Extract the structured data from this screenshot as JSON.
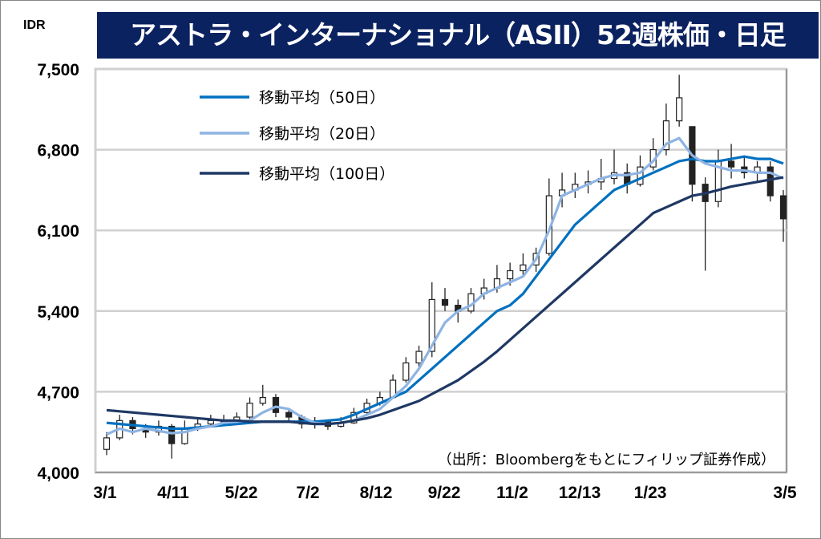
{
  "title": "アストラ・インターナショナル（ASII）52週株価・日足",
  "chart_data": {
    "type": "candlestick",
    "title": "アストラ・インターナショナル（ASII）52週株価・日足",
    "ylabel": "IDR",
    "ylim": [
      4000,
      7500
    ],
    "yticks": [
      "4,000",
      "4,700",
      "5,400",
      "6,100",
      "6,800",
      "7,500"
    ],
    "ytick_values": [
      4000,
      4700,
      5400,
      6100,
      6800,
      7500
    ],
    "xticks": [
      "3/1",
      "4/11",
      "5/22",
      "7/2",
      "8/12",
      "9/22",
      "11/2",
      "12/13",
      "1/23",
      "3/5"
    ],
    "grid": "horizontal",
    "legend_position": "top-left",
    "source": "（出所：Bloombergをもとにフィリップ証券作成）",
    "ohlc": [
      [
        4200,
        4350,
        4150,
        4300
      ],
      [
        4300,
        4500,
        4280,
        4450
      ],
      [
        4450,
        4480,
        4330,
        4380
      ],
      [
        4380,
        4420,
        4300,
        4350
      ],
      [
        4350,
        4450,
        4320,
        4400
      ],
      [
        4400,
        4420,
        4120,
        4250
      ],
      [
        4250,
        4450,
        4240,
        4380
      ],
      [
        4380,
        4480,
        4360,
        4420
      ],
      [
        4420,
        4500,
        4400,
        4450
      ],
      [
        4450,
        4500,
        4410,
        4440
      ],
      [
        4440,
        4520,
        4420,
        4480
      ],
      [
        4480,
        4650,
        4460,
        4600
      ],
      [
        4600,
        4760,
        4580,
        4650
      ],
      [
        4650,
        4680,
        4480,
        4520
      ],
      [
        4520,
        4540,
        4440,
        4480
      ],
      [
        4480,
        4500,
        4380,
        4420
      ],
      [
        4420,
        4480,
        4380,
        4440
      ],
      [
        4440,
        4460,
        4370,
        4400
      ],
      [
        4400,
        4480,
        4390,
        4430
      ],
      [
        4430,
        4560,
        4420,
        4520
      ],
      [
        4520,
        4640,
        4500,
        4600
      ],
      [
        4600,
        4700,
        4580,
        4650
      ],
      [
        4650,
        4850,
        4640,
        4800
      ],
      [
        4800,
        5000,
        4780,
        4950
      ],
      [
        4950,
        5100,
        4900,
        5050
      ],
      [
        5050,
        5650,
        5000,
        5500
      ],
      [
        5500,
        5600,
        5400,
        5450
      ],
      [
        5450,
        5500,
        5300,
        5400
      ],
      [
        5400,
        5600,
        5380,
        5550
      ],
      [
        5550,
        5680,
        5500,
        5600
      ],
      [
        5600,
        5800,
        5560,
        5680
      ],
      [
        5680,
        5820,
        5620,
        5750
      ],
      [
        5750,
        5900,
        5700,
        5800
      ],
      [
        5800,
        5950,
        5740,
        5900
      ],
      [
        5900,
        6550,
        5880,
        6400
      ],
      [
        6400,
        6600,
        6300,
        6450
      ],
      [
        6450,
        6600,
        6380,
        6500
      ],
      [
        6500,
        6620,
        6420,
        6520
      ],
      [
        6520,
        6720,
        6450,
        6550
      ],
      [
        6550,
        6800,
        6500,
        6600
      ],
      [
        6600,
        6680,
        6420,
        6500
      ],
      [
        6500,
        6750,
        6480,
        6650
      ],
      [
        6650,
        6900,
        6620,
        6800
      ],
      [
        6800,
        7200,
        6750,
        7050
      ],
      [
        7050,
        7450,
        7000,
        7250
      ],
      [
        7000,
        7000,
        6350,
        6500
      ],
      [
        6500,
        6560,
        5750,
        6350
      ],
      [
        6350,
        6800,
        6300,
        6700
      ],
      [
        6700,
        6850,
        6550,
        6650
      ],
      [
        6650,
        6750,
        6550,
        6600
      ],
      [
        6600,
        6700,
        6520,
        6650
      ],
      [
        6650,
        6700,
        6350,
        6400
      ],
      [
        6400,
        6450,
        6000,
        6200
      ]
    ],
    "series": [
      {
        "name": "移動平均（50日）",
        "color": "#0070c0",
        "values": [
          4430,
          4420,
          4410,
          4400,
          4390,
          4380,
          4380,
          4390,
          4400,
          4410,
          4420,
          4430,
          4440,
          4440,
          4440,
          4440,
          4440,
          4450,
          4460,
          4500,
          4550,
          4600,
          4650,
          4700,
          4800,
          4900,
          5000,
          5100,
          5200,
          5300,
          5400,
          5450,
          5550,
          5700,
          5850,
          6000,
          6150,
          6250,
          6350,
          6450,
          6500,
          6550,
          6600,
          6650,
          6700,
          6720,
          6700,
          6700,
          6720,
          6740,
          6720,
          6720,
          6680
        ]
      },
      {
        "name": "移動平均（20日）",
        "color": "#8eb4e3",
        "values": [
          4330,
          4380,
          4350,
          4380,
          4360,
          4340,
          4350,
          4380,
          4400,
          4430,
          4440,
          4450,
          4520,
          4570,
          4550,
          4480,
          4430,
          4420,
          4430,
          4450,
          4500,
          4550,
          4650,
          4750,
          4900,
          5100,
          5300,
          5400,
          5450,
          5550,
          5600,
          5650,
          5700,
          5850,
          6100,
          6400,
          6450,
          6500,
          6550,
          6580,
          6580,
          6600,
          6700,
          6850,
          6900,
          6750,
          6680,
          6650,
          6620,
          6620,
          6600,
          6600,
          6550
        ]
      },
      {
        "name": "移動平均（100日）",
        "color": "#1f3864",
        "values": [
          4540,
          4530,
          4520,
          4510,
          4500,
          4490,
          4480,
          4470,
          4460,
          4450,
          4450,
          4440,
          4440,
          4440,
          4440,
          4430,
          4420,
          4420,
          4430,
          4450,
          4470,
          4500,
          4540,
          4580,
          4620,
          4680,
          4740,
          4800,
          4880,
          4960,
          5050,
          5150,
          5250,
          5350,
          5450,
          5550,
          5650,
          5750,
          5850,
          5950,
          6050,
          6150,
          6250,
          6300,
          6350,
          6400,
          6420,
          6450,
          6480,
          6500,
          6520,
          6540,
          6560
        ]
      }
    ]
  }
}
